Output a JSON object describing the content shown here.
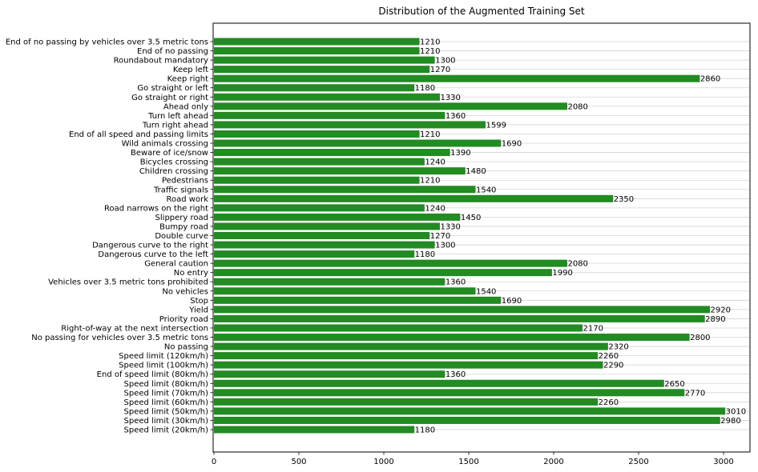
{
  "chart_data": {
    "type": "bar",
    "orientation": "horizontal",
    "title": "Distribution of the Augmented Training Set",
    "xlabel": "",
    "ylabel": "",
    "xlim": [
      0,
      3150
    ],
    "xticks": [
      0,
      500,
      1000,
      1500,
      2000,
      2500,
      3000
    ],
    "grid": "horizontal lines at each category",
    "legend": "none",
    "bar_color": "#228B22",
    "grid_color": "#d3d3d3",
    "categories": [
      "Speed limit (20km/h)",
      "Speed limit (30km/h)",
      "Speed limit (50km/h)",
      "Speed limit (60km/h)",
      "Speed limit (70km/h)",
      "Speed limit (80km/h)",
      "End of speed limit (80km/h)",
      "Speed limit (100km/h)",
      "Speed limit (120km/h)",
      "No passing",
      "No passing for vehicles over 3.5 metric tons",
      "Right-of-way at the next intersection",
      "Priority road",
      "Yield",
      "Stop",
      "No vehicles",
      "Vehicles over 3.5 metric tons prohibited",
      "No entry",
      "General caution",
      "Dangerous curve to the left",
      "Dangerous curve to the right",
      "Double curve",
      "Bumpy road",
      "Slippery road",
      "Road narrows on the right",
      "Road work",
      "Traffic signals",
      "Pedestrians",
      "Children crossing",
      "Bicycles crossing",
      "Beware of ice/snow",
      "Wild animals crossing",
      "End of all speed and passing limits",
      "Turn right ahead",
      "Turn left ahead",
      "Ahead only",
      "Go straight or right",
      "Go straight or left",
      "Keep right",
      "Keep left",
      "Roundabout mandatory",
      "End of no passing",
      "End of no passing by vehicles over 3.5 metric tons"
    ],
    "values": [
      1180,
      2980,
      3010,
      2260,
      2770,
      2650,
      1360,
      2290,
      2260,
      2320,
      2800,
      2170,
      2890,
      2920,
      1690,
      1540,
      1360,
      1990,
      2080,
      1180,
      1300,
      1270,
      1330,
      1450,
      1240,
      2350,
      1540,
      1210,
      1480,
      1240,
      1390,
      1690,
      1210,
      1599,
      1360,
      2080,
      1330,
      1180,
      2860,
      1270,
      1300,
      1210,
      1210
    ]
  }
}
